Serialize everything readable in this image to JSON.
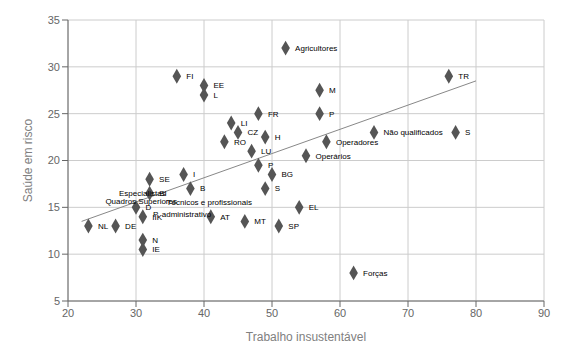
{
  "chart_data": {
    "type": "scatter",
    "xlabel": "Trabalho insustentável",
    "ylabel": "Saúde em risco",
    "x": [
      23,
      27,
      30,
      31,
      31,
      31,
      32,
      32,
      36,
      37,
      38,
      40,
      40,
      41,
      46,
      44,
      45,
      43,
      47,
      48,
      50,
      49,
      49,
      48,
      51,
      54,
      57,
      57,
      52,
      58,
      55,
      62,
      65,
      76,
      77
    ],
    "values": [
      13,
      13,
      15,
      14,
      11.5,
      10.5,
      18,
      16.5,
      29,
      18.5,
      17,
      28,
      27,
      14,
      13.5,
      24,
      23,
      22,
      21,
      19.5,
      18.5,
      17,
      22.5,
      25,
      13,
      15,
      25,
      27.5,
      32,
      22,
      20.5,
      8,
      23,
      29,
      23
    ],
    "labels": [
      "NL",
      "DE",
      "D",
      "IIK",
      "N",
      "IE",
      "SE",
      "SI",
      "FI",
      "I",
      "B",
      "EE",
      "L",
      "AT",
      "MT",
      "LI",
      "CZ",
      "RO",
      "LU",
      "P",
      "BG",
      "S",
      "H",
      "FR",
      "SP",
      "EL",
      "P",
      "M",
      "Agricultores",
      "Operadores",
      "Operários",
      "Forças",
      "Não qualificados",
      "TR",
      "S"
    ],
    "color": "#555555",
    "marker": "diamond",
    "trendline": {
      "x": [
        22,
        80
      ],
      "values": [
        13.5,
        28.5
      ],
      "color": "#888888"
    },
    "annotations": [
      {
        "text": "Especialistas",
        "x": 27.5,
        "y": 16.5
      },
      {
        "text": "Quadros Superiores",
        "x": 25.5,
        "y": 15.7
      },
      {
        "text": "Técnicos e profissionais",
        "x": 34.5,
        "y": 15.5
      },
      {
        "text": "P. administrativo",
        "x": 32.5,
        "y": 14.3
      }
    ],
    "xlim": [
      20,
      90
    ],
    "ylim": [
      5,
      35
    ],
    "xticks": [
      20,
      30,
      40,
      50,
      60,
      70,
      80,
      90
    ],
    "yticks": [
      5,
      10,
      15,
      20,
      25,
      30,
      35
    ],
    "grid": true
  }
}
